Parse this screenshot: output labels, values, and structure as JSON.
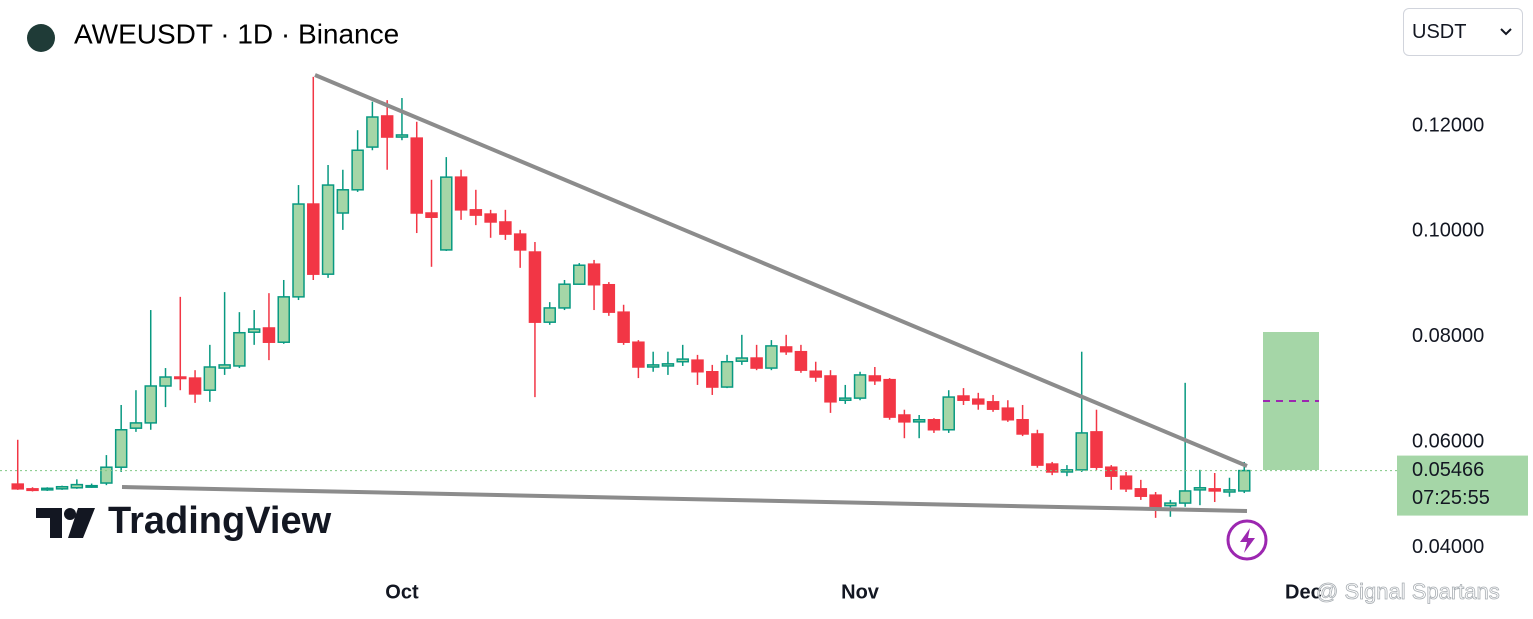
{
  "header": {
    "title": "AWEUSDT · 1D · Binance",
    "currency": "USDT"
  },
  "logo": "TradingView",
  "watermark": "@ Signal Spartans",
  "chart_data": {
    "type": "candlestick",
    "up_color": "#089981",
    "up_fill": "#a5d6a7",
    "down_color": "#f23645",
    "open": [
      0.0521,
      0.0512,
      0.051,
      0.0512,
      0.0514,
      0.0516,
      0.0523,
      0.0553,
      0.0627,
      0.0637,
      0.0707,
      0.0724,
      0.0722,
      0.0699,
      0.0741,
      0.0745,
      0.0809,
      0.0817,
      0.079,
      0.0876,
      0.1052,
      0.0919,
      0.1035,
      0.1079,
      0.116,
      0.1219,
      0.1179,
      0.1177,
      0.1035,
      0.0965,
      0.1103,
      0.1041,
      0.1033,
      0.1018,
      0.0995,
      0.0961,
      0.0828,
      0.0855,
      0.09,
      0.0938,
      0.0899,
      0.0847,
      0.079,
      0.0743,
      0.0745,
      0.0753,
      0.0756,
      0.0734,
      0.0705,
      0.0754,
      0.076,
      0.0741,
      0.0781,
      0.0772,
      0.0735,
      0.0726,
      0.068,
      0.0684,
      0.0726,
      0.0719,
      0.0652,
      0.0639,
      0.0643,
      0.0624,
      0.0688,
      0.0682,
      0.0677,
      0.0665,
      0.0643,
      0.0616,
      0.0559,
      0.0544,
      0.0548,
      0.062,
      0.0553,
      0.0536,
      0.0512,
      0.05,
      0.048,
      0.0485,
      0.051,
      0.0512,
      0.0506,
      0.0508
    ],
    "high": [
      0.0605,
      0.0515,
      0.0515,
      0.0518,
      0.053,
      0.0522,
      0.0576,
      0.0671,
      0.0699,
      0.0851,
      0.0741,
      0.0876,
      0.0737,
      0.0785,
      0.0885,
      0.0847,
      0.0851,
      0.0883,
      0.0908,
      0.1088,
      0.1293,
      0.1126,
      0.1117,
      0.1192,
      0.1246,
      0.1249,
      0.1253,
      0.1208,
      0.1098,
      0.1141,
      0.1117,
      0.1079,
      0.1041,
      0.1041,
      0.1003,
      0.098,
      0.0866,
      0.0908,
      0.094,
      0.0946,
      0.0904,
      0.0861,
      0.0794,
      0.0772,
      0.0772,
      0.0785,
      0.0766,
      0.0747,
      0.0766,
      0.0804,
      0.0785,
      0.0794,
      0.0804,
      0.0785,
      0.0753,
      0.0737,
      0.0709,
      0.0734,
      0.0743,
      0.0722,
      0.0662,
      0.0652,
      0.0646,
      0.0699,
      0.0703,
      0.0694,
      0.069,
      0.068,
      0.0671,
      0.0624,
      0.0563,
      0.0557,
      0.0772,
      0.0662,
      0.0557,
      0.0544,
      0.0529,
      0.0506,
      0.0491,
      0.0713,
      0.0548,
      0.0542,
      0.0533,
      0.0563
    ],
    "low": [
      0.051,
      0.0507,
      0.0508,
      0.051,
      0.0512,
      0.0514,
      0.0519,
      0.0544,
      0.062,
      0.0624,
      0.0667,
      0.0699,
      0.0675,
      0.0677,
      0.0728,
      0.0741,
      0.0785,
      0.0756,
      0.0787,
      0.087,
      0.0908,
      0.0912,
      0.1003,
      0.1075,
      0.1154,
      0.1117,
      0.1173,
      0.0997,
      0.0933,
      0.0963,
      0.1022,
      0.1012,
      0.0988,
      0.0984,
      0.0931,
      0.0686,
      0.0823,
      0.0851,
      0.0899,
      0.0851,
      0.084,
      0.0785,
      0.0722,
      0.0734,
      0.0728,
      0.0745,
      0.0709,
      0.069,
      0.0703,
      0.0747,
      0.0737,
      0.0737,
      0.0766,
      0.0732,
      0.0715,
      0.0656,
      0.0673,
      0.068,
      0.0709,
      0.0643,
      0.0608,
      0.0608,
      0.0618,
      0.0618,
      0.0671,
      0.0662,
      0.0658,
      0.0639,
      0.0612,
      0.0552,
      0.0538,
      0.0536,
      0.0544,
      0.0548,
      0.051,
      0.0506,
      0.0491,
      0.0457,
      0.0459,
      0.0478,
      0.0481,
      0.0487,
      0.0497,
      0.0504
    ],
    "close": [
      0.0512,
      0.051,
      0.0513,
      0.0516,
      0.052,
      0.0518,
      0.0553,
      0.0624,
      0.0637,
      0.0707,
      0.0724,
      0.0722,
      0.0692,
      0.0743,
      0.0747,
      0.0808,
      0.0815,
      0.079,
      0.0876,
      0.1052,
      0.0919,
      0.1088,
      0.1079,
      0.1154,
      0.1217,
      0.1179,
      0.1183,
      0.1035,
      0.1027,
      0.1103,
      0.1041,
      0.1031,
      0.1018,
      0.0995,
      0.0965,
      0.0828,
      0.0855,
      0.09,
      0.0936,
      0.0899,
      0.0847,
      0.079,
      0.0743,
      0.0747,
      0.0749,
      0.0758,
      0.0734,
      0.0705,
      0.0753,
      0.076,
      0.0741,
      0.0783,
      0.0772,
      0.0737,
      0.0724,
      0.0677,
      0.0684,
      0.0728,
      0.0717,
      0.0648,
      0.0639,
      0.0643,
      0.0624,
      0.0686,
      0.068,
      0.0673,
      0.0663,
      0.0643,
      0.0616,
      0.0557,
      0.0544,
      0.0548,
      0.0618,
      0.0553,
      0.0536,
      0.0512,
      0.0498,
      0.0478,
      0.0485,
      0.0508,
      0.0514,
      0.0508,
      0.051,
      0.05466
    ],
    "countdown": "07:25:55",
    "xlim": [
      -1.2,
      93.2
    ],
    "xticks": [
      {
        "value": 26,
        "label": "Oct"
      },
      {
        "value": 57,
        "label": "Nov"
      },
      {
        "value": 87,
        "label": "Dec"
      }
    ],
    "ylim": [
      0.036,
      0.14
    ],
    "yticks": [
      {
        "value": 0.04,
        "label": "0.04000"
      },
      {
        "value": 0.06,
        "label": "0.06000"
      },
      {
        "value": 0.08,
        "label": "0.08000"
      },
      {
        "value": 0.1,
        "label": "0.10000"
      },
      {
        "value": 0.12,
        "label": "0.12000"
      }
    ]
  }
}
